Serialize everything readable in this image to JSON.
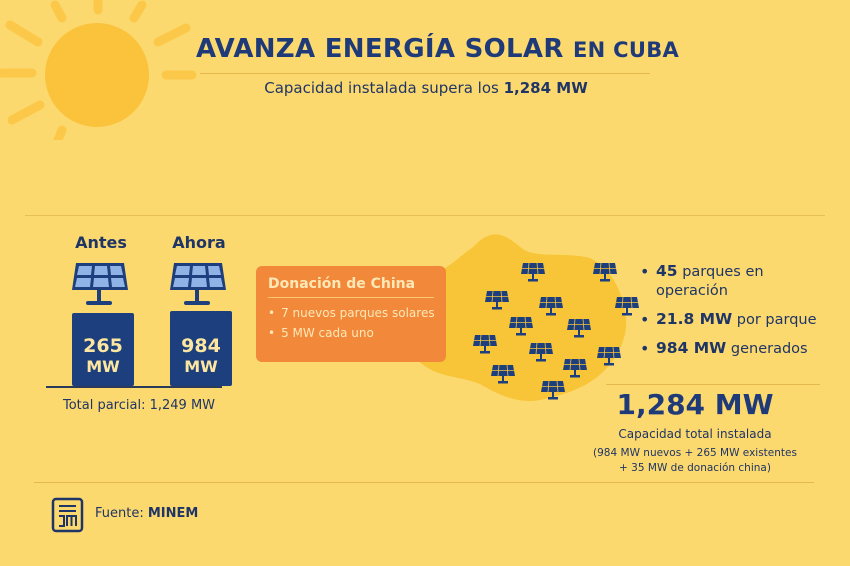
{
  "header": {
    "title_main": "AVANZA ENERGÍA SOLAR",
    "title_small": "EN CUBA",
    "subtitle_prefix": "Capacidad instalada supera los",
    "subtitle_value": "1,284 MW"
  },
  "comparison": {
    "before": {
      "label": "Antes",
      "value": "265",
      "unit": "MW"
    },
    "after": {
      "label": "Ahora",
      "value": "984",
      "unit": "MW"
    },
    "total": "Total parcial: 1,249 MW"
  },
  "china_donation": {
    "title": "Donación de China",
    "items": [
      "7 nuevos parques solares",
      "5 MW cada uno"
    ]
  },
  "stats": [
    {
      "bold": "45",
      "text": "parques en operación"
    },
    {
      "bold": "21.8 MW",
      "text": "por parque"
    },
    {
      "bold": "984 MW",
      "text": "generados"
    }
  ],
  "total": {
    "value": "1,284 MW",
    "label": "Capacidad total instalada",
    "breakdown_1": "(984 MW nuevos + 265 MW existentes",
    "breakdown_2": "+ 35 MW de donación china)"
  },
  "footer": {
    "prefix": "Fuente:",
    "source": "MINEM",
    "icon": "building-chart-icon"
  },
  "colors": {
    "background": "#fcd96e",
    "navy": "#1e3a78",
    "orange_card": "#f2883a",
    "map": "#f8c438",
    "sun": "#fbc23c"
  }
}
